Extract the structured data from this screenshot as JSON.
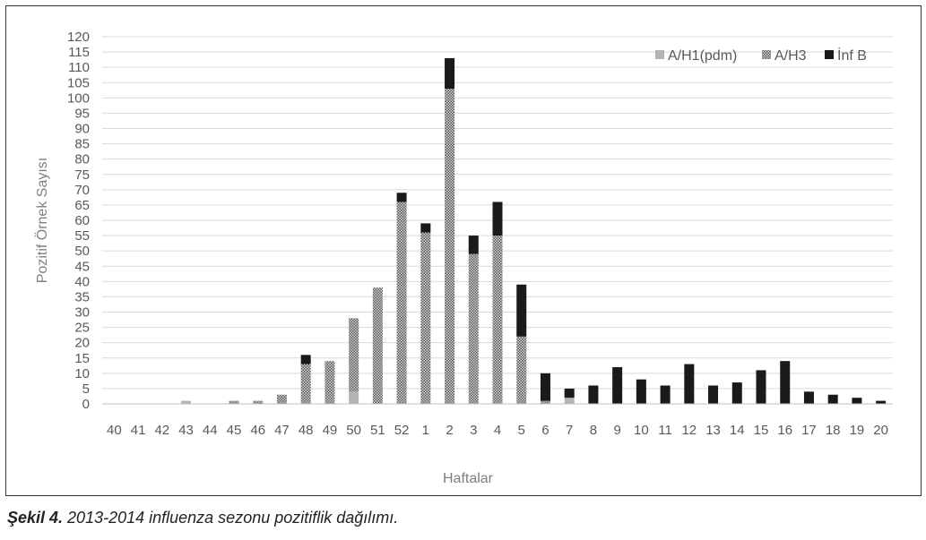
{
  "caption": {
    "label": "Şekil 4.",
    "text": " 2013-2014 influenza sezonu pozitiflik dağılımı."
  },
  "chart_data": {
    "type": "bar",
    "stacked": true,
    "title": "",
    "xlabel": "Haftalar",
    "ylabel": "Pozitif Örnek Sayısı",
    "ylim": [
      0,
      120
    ],
    "ytick_step": 5,
    "grid": true,
    "legend_position": "top-right",
    "categories": [
      "40",
      "41",
      "42",
      "43",
      "44",
      "45",
      "46",
      "47",
      "48",
      "49",
      "50",
      "51",
      "52",
      "1",
      "2",
      "3",
      "4",
      "5",
      "6",
      "7",
      "8",
      "9",
      "10",
      "11",
      "12",
      "13",
      "14",
      "15",
      "16",
      "17",
      "18",
      "19",
      "20"
    ],
    "series": [
      {
        "name": "A/H1(pdm)",
        "color": "#b4b4b4",
        "pattern": "solid",
        "values": [
          0,
          0,
          0,
          1,
          0,
          0,
          0,
          0,
          0,
          0,
          4,
          0,
          0,
          0,
          0,
          0,
          0,
          0,
          0,
          2,
          0,
          0,
          0,
          0,
          0,
          0,
          0,
          0,
          0,
          0,
          0,
          0,
          0
        ]
      },
      {
        "name": "A/H3",
        "color": "#8a8a8a",
        "pattern": "checker",
        "values": [
          0,
          0,
          0,
          0,
          0,
          1,
          1,
          3,
          13,
          14,
          24,
          38,
          66,
          56,
          103,
          49,
          55,
          22,
          1,
          0,
          0,
          0,
          0,
          0,
          0,
          0,
          0,
          0,
          0,
          0,
          0,
          0,
          0
        ]
      },
      {
        "name": "İnf B",
        "color": "#1a1a1a",
        "pattern": "solid",
        "values": [
          0,
          0,
          0,
          0,
          0,
          0,
          0,
          0,
          3,
          0,
          0,
          0,
          3,
          3,
          10,
          6,
          11,
          17,
          9,
          3,
          6,
          12,
          8,
          6,
          13,
          6,
          7,
          11,
          14,
          4,
          3,
          2,
          1
        ]
      }
    ]
  }
}
